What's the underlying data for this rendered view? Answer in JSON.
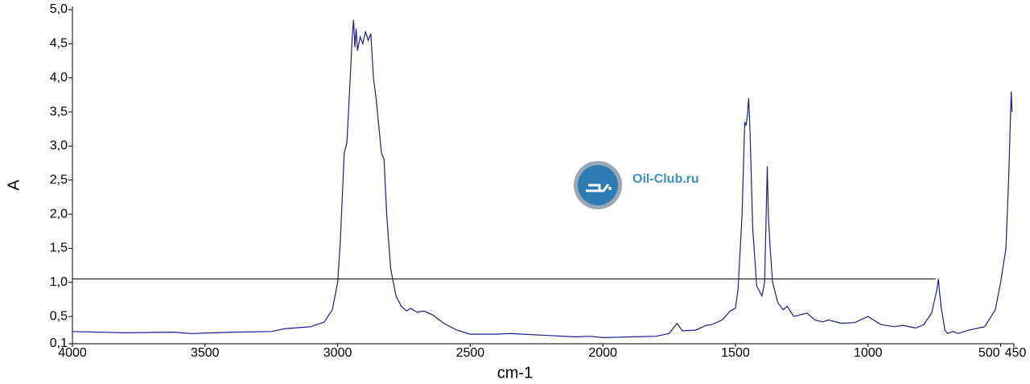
{
  "chart_data": {
    "type": "line",
    "x_label": "cm-1",
    "y_label": "A",
    "watermark": "Oil-Club.ru",
    "color": "#1c1c8c",
    "x": [
      4000,
      3800,
      3620,
      3550,
      3400,
      3250,
      3200,
      3100,
      3050,
      3020,
      3000,
      2990,
      2975,
      2965,
      2955,
      2945,
      2940,
      2935,
      2930,
      2925,
      2915,
      2905,
      2895,
      2885,
      2875,
      2865,
      2855,
      2845,
      2835,
      2825,
      2815,
      2800,
      2780,
      2760,
      2740,
      2725,
      2700,
      2675,
      2640,
      2600,
      2550,
      2500,
      2400,
      2350,
      2200,
      2100,
      2050,
      2000,
      1900,
      1800,
      1750,
      1720,
      1700,
      1650,
      1610,
      1590,
      1550,
      1520,
      1500,
      1490,
      1475,
      1465,
      1460,
      1455,
      1450,
      1445,
      1435,
      1420,
      1400,
      1390,
      1380,
      1376,
      1370,
      1360,
      1340,
      1320,
      1305,
      1280,
      1260,
      1230,
      1200,
      1170,
      1150,
      1100,
      1050,
      1000,
      980,
      950,
      900,
      870,
      820,
      790,
      760,
      740,
      735,
      725,
      710,
      700,
      680,
      660,
      620,
      560,
      520,
      500,
      480,
      470,
      460,
      457
    ],
    "values": [
      0.28,
      0.26,
      0.27,
      0.25,
      0.27,
      0.28,
      0.32,
      0.35,
      0.42,
      0.6,
      1.0,
      1.6,
      2.9,
      3.05,
      3.8,
      4.6,
      4.85,
      4.45,
      4.72,
      4.4,
      4.6,
      4.5,
      4.68,
      4.55,
      4.65,
      4.0,
      3.7,
      3.3,
      2.9,
      2.8,
      2.0,
      1.2,
      0.8,
      0.65,
      0.58,
      0.62,
      0.56,
      0.58,
      0.52,
      0.4,
      0.3,
      0.24,
      0.24,
      0.25,
      0.22,
      0.2,
      0.21,
      0.19,
      0.2,
      0.21,
      0.25,
      0.4,
      0.29,
      0.3,
      0.37,
      0.38,
      0.45,
      0.58,
      0.62,
      0.9,
      2.0,
      3.35,
      3.3,
      3.45,
      3.7,
      3.2,
      1.8,
      0.95,
      0.8,
      1.0,
      2.7,
      2.0,
      1.55,
      1.0,
      0.7,
      0.6,
      0.65,
      0.5,
      0.52,
      0.55,
      0.45,
      0.42,
      0.45,
      0.4,
      0.41,
      0.5,
      0.45,
      0.38,
      0.35,
      0.37,
      0.33,
      0.38,
      0.55,
      0.9,
      1.05,
      0.65,
      0.3,
      0.25,
      0.28,
      0.25,
      0.3,
      0.35,
      0.6,
      1.0,
      1.5,
      2.5,
      3.8,
      3.5
    ],
    "hline": {
      "y": 1.05,
      "x": [
        4000,
        745
      ]
    },
    "xlim": [
      4000,
      450
    ],
    "xticks": [
      4000,
      3500,
      3000,
      2500,
      2000,
      1500,
      1000,
      500,
      450
    ],
    "ylim": [
      0.1,
      5.0
    ],
    "yticks": [
      {
        "value": 0.1,
        "label": "0,1"
      },
      {
        "value": 0.5,
        "label": "0,5"
      },
      {
        "value": 1.0,
        "label": "1,0"
      },
      {
        "value": 1.5,
        "label": "1,5"
      },
      {
        "value": 2.0,
        "label": "2,0"
      },
      {
        "value": 2.5,
        "label": "2,5"
      },
      {
        "value": 3.0,
        "label": "3,0"
      },
      {
        "value": 3.5,
        "label": "3,5"
      },
      {
        "value": 4.0,
        "label": "4,0"
      },
      {
        "value": 4.5,
        "label": "4,5"
      },
      {
        "value": 5.0,
        "label": "5,0"
      }
    ]
  }
}
